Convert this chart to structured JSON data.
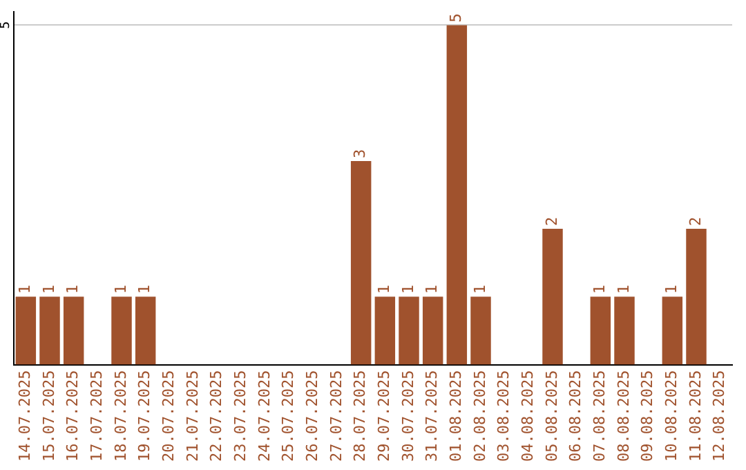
{
  "chart_data": {
    "type": "bar",
    "categories": [
      "14.07.2025",
      "15.07.2025",
      "16.07.2025",
      "17.07.2025",
      "18.07.2025",
      "19.07.2025",
      "20.07.2025",
      "21.07.2025",
      "22.07.2025",
      "23.07.2025",
      "24.07.2025",
      "25.07.2025",
      "26.07.2025",
      "27.07.2025",
      "28.07.2025",
      "29.07.2025",
      "30.07.2025",
      "31.07.2025",
      "01.08.2025",
      "02.08.2025",
      "03.08.2025",
      "04.08.2025",
      "05.08.2025",
      "06.08.2025",
      "07.08.2025",
      "08.08.2025",
      "09.08.2025",
      "10.08.2025",
      "11.08.2025",
      "12.08.2025"
    ],
    "values": [
      1,
      1,
      1,
      0,
      1,
      1,
      0,
      0,
      0,
      0,
      0,
      0,
      0,
      0,
      3,
      1,
      1,
      1,
      5,
      1,
      0,
      0,
      2,
      0,
      1,
      1,
      0,
      1,
      2,
      0
    ],
    "value_labels": [
      "1",
      "1",
      "1",
      null,
      "1",
      "1",
      null,
      null,
      null,
      null,
      null,
      null,
      null,
      null,
      "3",
      "1",
      "1",
      "1",
      "5",
      "1",
      null,
      null,
      "2",
      null,
      "1",
      "1",
      null,
      "1",
      "2",
      null
    ],
    "color": "#a0522d",
    "ylim": [
      0,
      5.2
    ],
    "yticks": [
      5
    ],
    "grid": "y",
    "legend": false
  }
}
